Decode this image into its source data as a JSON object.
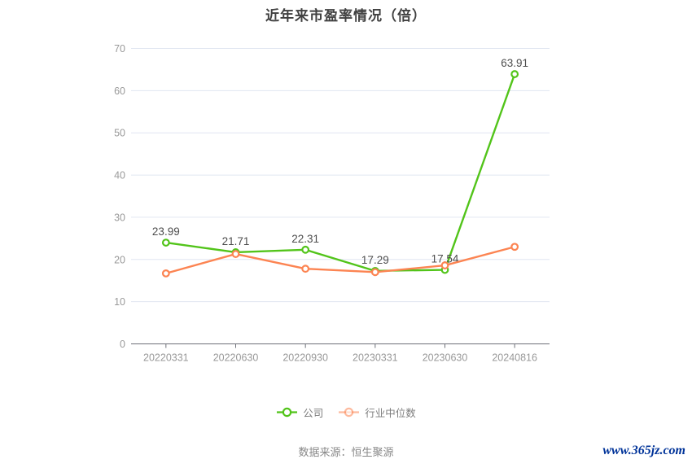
{
  "title": "近年来市盈率情况（倍）",
  "chart_data": {
    "type": "line",
    "title": "近年来市盈率情况（倍）",
    "categories": [
      "20220331",
      "20220630",
      "20220930",
      "20230331",
      "20230630",
      "20240816"
    ],
    "series": [
      {
        "name": "公司",
        "color": "#52c41a",
        "values": [
          23.99,
          21.71,
          22.31,
          17.29,
          17.54,
          63.91
        ],
        "data_labels": [
          "23.99",
          "21.71",
          "22.31",
          "17.29",
          "17.54",
          "63.91"
        ]
      },
      {
        "name": "行业中位数",
        "color": "#fc8452",
        "values": [
          16.7,
          21.3,
          17.8,
          17.0,
          18.6,
          23.0
        ],
        "data_labels": []
      }
    ],
    "ylim": [
      0,
      70
    ],
    "yticks": [
      0,
      10,
      20,
      30,
      40,
      50,
      60,
      70
    ],
    "grid": true,
    "legend_position": "bottom"
  },
  "legend": {
    "items": [
      {
        "label": "公司",
        "color": "#52c41a",
        "icon_opacity": 1
      },
      {
        "label": "行业中位数",
        "color": "#fc8452",
        "icon_opacity": 0.55
      }
    ]
  },
  "footer": {
    "source": "数据来源：恒生聚源",
    "watermark": "www.365jz.com"
  },
  "colors": {
    "background": "#ffffff",
    "title": "#404040",
    "grid_line": "#e0e6f1",
    "axis_line": "#6e7079",
    "axis_label": "#999999",
    "data_label": "#4d4d4d",
    "accent_green": "#52c41a",
    "accent_orange": "#fc8452",
    "source_text": "#888888",
    "watermark": "#003399"
  }
}
